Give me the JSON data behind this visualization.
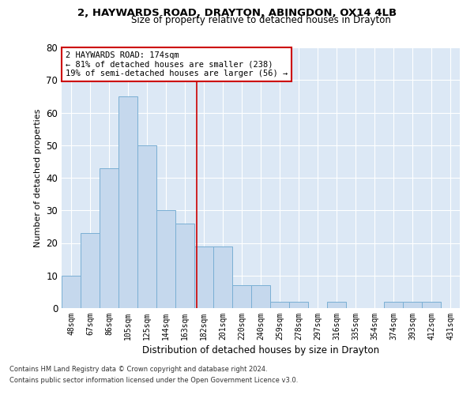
{
  "title1": "2, HAYWARDS ROAD, DRAYTON, ABINGDON, OX14 4LB",
  "title2": "Size of property relative to detached houses in Drayton",
  "xlabel": "Distribution of detached houses by size in Drayton",
  "ylabel": "Number of detached properties",
  "bar_labels": [
    "48sqm",
    "67sqm",
    "86sqm",
    "105sqm",
    "125sqm",
    "144sqm",
    "163sqm",
    "182sqm",
    "201sqm",
    "220sqm",
    "240sqm",
    "259sqm",
    "278sqm",
    "297sqm",
    "316sqm",
    "335sqm",
    "354sqm",
    "374sqm",
    "393sqm",
    "412sqm",
    "431sqm"
  ],
  "bar_values": [
    10,
    23,
    43,
    65,
    50,
    30,
    26,
    19,
    19,
    7,
    7,
    2,
    2,
    0,
    2,
    0,
    0,
    2,
    2,
    2,
    0
  ],
  "bar_color": "#c5d8ed",
  "bar_edge_color": "#7aafd4",
  "vline_color": "#cc0000",
  "box_edge_color": "#cc0000",
  "background_color": "#dce8f5",
  "grid_color": "#ffffff",
  "ylim": [
    0,
    80
  ],
  "yticks": [
    0,
    10,
    20,
    30,
    40,
    50,
    60,
    70,
    80
  ],
  "annotation_title": "2 HAYWARDS ROAD: 174sqm",
  "annotation_line1": "← 81% of detached houses are smaller (238)",
  "annotation_line2": "19% of semi-detached houses are larger (56) →",
  "footnote1": "Contains HM Land Registry data © Crown copyright and database right 2024.",
  "footnote2": "Contains public sector information licensed under the Open Government Licence v3.0.",
  "vline_index": 6.63
}
